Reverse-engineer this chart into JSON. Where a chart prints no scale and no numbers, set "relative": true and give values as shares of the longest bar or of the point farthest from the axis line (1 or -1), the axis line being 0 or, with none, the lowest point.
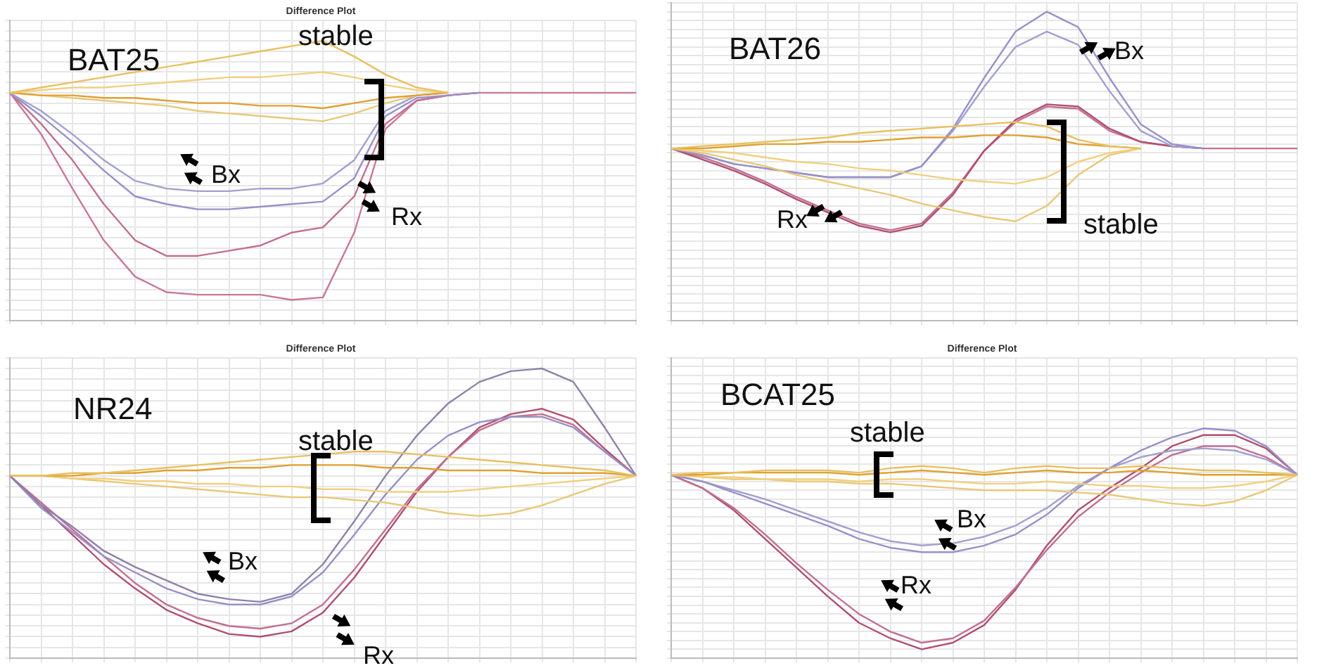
{
  "chart_data": [
    {
      "type": "line",
      "title": "Difference Plot",
      "relative": true,
      "grid": true,
      "legend": false,
      "tick_labels": false,
      "annotations": [
        "BAT25",
        "stable",
        "Bx",
        "Rx"
      ],
      "categories": [
        null,
        null,
        null,
        null,
        null,
        null,
        null,
        null,
        null,
        null,
        null,
        null,
        null,
        null,
        null,
        null,
        null,
        null,
        null,
        null,
        null
      ],
      "series": [
        {
          "color": "#e8c060",
          "values": [
            0.8,
            0.82,
            0.84,
            0.86,
            0.88,
            0.9,
            0.92,
            0.94,
            0.96,
            0.98,
            1.0,
            0.94,
            0.87,
            0.82,
            0.8,
            null,
            null,
            null,
            null,
            null,
            null
          ]
        },
        {
          "color": "#f0d080",
          "values": [
            0.8,
            0.81,
            0.82,
            0.82,
            0.83,
            0.84,
            0.85,
            0.86,
            0.86,
            0.87,
            0.88,
            0.86,
            0.83,
            0.81,
            0.8,
            null,
            null,
            null,
            null,
            null,
            null
          ]
        },
        {
          "color": "#e0a030",
          "values": [
            0.8,
            0.79,
            0.79,
            0.78,
            0.78,
            0.77,
            0.76,
            0.76,
            0.75,
            0.75,
            0.74,
            0.76,
            0.78,
            0.79,
            0.8,
            null,
            null,
            null,
            null,
            null,
            null
          ]
        },
        {
          "color": "#e8c878",
          "values": [
            0.8,
            0.79,
            0.78,
            0.77,
            0.76,
            0.75,
            0.73,
            0.72,
            0.71,
            0.7,
            0.69,
            0.72,
            0.76,
            0.79,
            0.8,
            null,
            null,
            null,
            null,
            null,
            null
          ]
        },
        {
          "color": "#a0a0d0",
          "values": [
            0.8,
            0.73,
            0.64,
            0.54,
            0.46,
            0.43,
            0.42,
            0.42,
            0.43,
            0.43,
            0.45,
            0.54,
            0.73,
            0.79,
            0.8,
            null,
            null,
            null,
            null,
            null,
            null
          ]
        },
        {
          "color": "#9890c8",
          "values": [
            0.8,
            0.71,
            0.61,
            0.5,
            0.4,
            0.37,
            0.35,
            0.35,
            0.36,
            0.37,
            0.38,
            0.47,
            0.71,
            0.78,
            0.79,
            0.8,
            null,
            null,
            null,
            null,
            null
          ]
        },
        {
          "color": "#c07090",
          "values": [
            0.8,
            0.68,
            0.54,
            0.37,
            0.23,
            0.17,
            0.17,
            0.19,
            0.21,
            0.26,
            0.28,
            0.4,
            0.68,
            0.77,
            0.79,
            0.8,
            null,
            null,
            null,
            null,
            null
          ]
        },
        {
          "color": "#c87898",
          "values": [
            0.8,
            0.64,
            0.43,
            0.23,
            0.09,
            0.03,
            0.02,
            0.02,
            0.02,
            0,
            0.01,
            0.26,
            0.66,
            0.77,
            0.79,
            0.8,
            0.8,
            0.8,
            0.8,
            0.8,
            0.8
          ]
        }
      ]
    },
    {
      "type": "line",
      "relative": true,
      "grid": true,
      "legend": false,
      "tick_labels": false,
      "annotations": [
        "BAT26",
        "Bx",
        "Rx",
        "stable"
      ],
      "categories": [
        null,
        null,
        null,
        null,
        null,
        null,
        null,
        null,
        null,
        null,
        null,
        null,
        null,
        null,
        null,
        null,
        null,
        null,
        null,
        null,
        null
      ],
      "series": [
        {
          "color": "#e8c060",
          "values": [
            0.38,
            0.39,
            0.4,
            0.41,
            0.42,
            0.43,
            0.45,
            0.46,
            0.47,
            0.48,
            0.49,
            0.5,
            0.48,
            0.42,
            0.39,
            0.38,
            null,
            null,
            null,
            null,
            null
          ]
        },
        {
          "color": "#e0a030",
          "values": [
            0.38,
            0.38,
            0.39,
            0.4,
            0.4,
            0.41,
            0.41,
            0.42,
            0.43,
            0.43,
            0.44,
            0.44,
            0.43,
            0.4,
            0.39,
            0.38,
            null,
            null,
            null,
            null,
            null
          ]
        },
        {
          "color": "#f0d080",
          "values": [
            0.38,
            0.37,
            0.36,
            0.34,
            0.32,
            0.31,
            0.29,
            0.28,
            0.26,
            0.24,
            0.23,
            0.22,
            0.25,
            0.32,
            0.36,
            0.38,
            null,
            null,
            null,
            null,
            null
          ]
        },
        {
          "color": "#e8c878",
          "values": [
            0.38,
            0.36,
            0.33,
            0.3,
            0.26,
            0.23,
            0.2,
            0.17,
            0.13,
            0.1,
            0.07,
            0.05,
            0.12,
            0.26,
            0.35,
            0.38,
            null,
            null,
            null,
            null,
            null
          ]
        },
        {
          "color": "#9890c8",
          "values": [
            0.38,
            0.35,
            0.31,
            0.29,
            0.27,
            0.25,
            0.25,
            0.25,
            0.3,
            0.47,
            0.7,
            0.91,
            1.0,
            0.93,
            0.7,
            0.49,
            0.4,
            0.38,
            null,
            null,
            null
          ]
        },
        {
          "color": "#a0a0d0",
          "values": [
            0.38,
            0.35,
            0.31,
            0.29,
            0.27,
            0.25,
            0.25,
            0.25,
            0.3,
            0.46,
            0.66,
            0.84,
            0.91,
            0.85,
            0.64,
            0.46,
            0.39,
            0.38,
            null,
            null,
            null
          ]
        },
        {
          "color": "#b05070",
          "values": [
            0.38,
            0.33,
            0.28,
            0.22,
            0.15,
            0.09,
            0.03,
            0,
            0.03,
            0.17,
            0.37,
            0.51,
            0.58,
            0.57,
            0.47,
            0.41,
            0.39,
            0.38,
            null,
            null,
            null
          ]
        },
        {
          "color": "#c07090",
          "values": [
            0.38,
            0.34,
            0.29,
            0.23,
            0.16,
            0.1,
            0.04,
            0.01,
            0.04,
            0.18,
            0.37,
            0.5,
            0.57,
            0.56,
            0.46,
            0.41,
            0.39,
            0.38,
            0.38,
            0.38,
            0.38
          ]
        }
      ]
    },
    {
      "type": "line",
      "title": "Difference Plot",
      "relative": true,
      "grid": true,
      "legend": false,
      "tick_labels": false,
      "annotations": [
        "NR24",
        "stable",
        "Bx",
        "Rx"
      ],
      "categories": [
        null,
        null,
        null,
        null,
        null,
        null,
        null,
        null,
        null,
        null,
        null,
        null,
        null,
        null,
        null,
        null,
        null,
        null,
        null,
        null,
        null
      ],
      "series": [
        {
          "color": "#e8c060",
          "values": [
            0.6,
            0.6,
            0.61,
            0.61,
            0.62,
            0.63,
            0.64,
            0.65,
            0.66,
            0.67,
            0.68,
            0.69,
            0.69,
            0.68,
            0.67,
            0.66,
            0.65,
            0.64,
            0.63,
            0.62,
            0.6
          ]
        },
        {
          "color": "#e0a030",
          "values": [
            0.6,
            0.6,
            0.6,
            0.61,
            0.61,
            0.62,
            0.62,
            0.63,
            0.63,
            0.64,
            0.64,
            0.64,
            0.63,
            0.63,
            0.62,
            0.62,
            0.62,
            0.61,
            0.61,
            0.61,
            0.6
          ]
        },
        {
          "color": "#f0d080",
          "values": [
            0.6,
            0.6,
            0.59,
            0.59,
            0.58,
            0.58,
            0.57,
            0.57,
            0.56,
            0.56,
            0.55,
            0.55,
            0.54,
            0.54,
            0.54,
            0.55,
            0.56,
            0.57,
            0.58,
            0.59,
            0.6
          ]
        },
        {
          "color": "#e8c878",
          "values": [
            0.6,
            0.6,
            0.59,
            0.58,
            0.57,
            0.56,
            0.55,
            0.54,
            0.53,
            0.52,
            0.52,
            0.51,
            0.5,
            0.48,
            0.46,
            0.45,
            0.46,
            0.49,
            0.53,
            0.57,
            0.6
          ]
        },
        {
          "color": "#9080a8",
          "values": [
            0.6,
            0.49,
            0.41,
            0.32,
            0.26,
            0.21,
            0.16,
            0.14,
            0.13,
            0.16,
            0.27,
            0.43,
            0.6,
            0.75,
            0.87,
            0.95,
            0.99,
            1.0,
            0.95,
            0.78,
            0.6
          ]
        },
        {
          "color": "#9890c8",
          "values": [
            0.6,
            0.48,
            0.39,
            0.3,
            0.24,
            0.18,
            0.14,
            0.12,
            0.12,
            0.15,
            0.24,
            0.38,
            0.53,
            0.66,
            0.75,
            0.8,
            0.82,
            0.82,
            0.78,
            0.69,
            0.6
          ]
        },
        {
          "color": "#c07090",
          "values": [
            0.6,
            0.5,
            0.4,
            0.3,
            0.2,
            0.12,
            0.07,
            0.04,
            0.03,
            0.05,
            0.12,
            0.25,
            0.4,
            0.55,
            0.67,
            0.77,
            0.82,
            0.83,
            0.79,
            0.69,
            0.6
          ]
        },
        {
          "color": "#b05070",
          "values": [
            0.6,
            0.49,
            0.38,
            0.27,
            0.18,
            0.1,
            0.05,
            0.01,
            0,
            0.02,
            0.09,
            0.22,
            0.38,
            0.54,
            0.67,
            0.78,
            0.83,
            0.85,
            0.81,
            0.7,
            0.6
          ]
        }
      ]
    },
    {
      "type": "line",
      "title": "Difference Plot",
      "relative": true,
      "grid": true,
      "legend": false,
      "tick_labels": false,
      "annotations": [
        "BCAT25",
        "stable",
        "Bx",
        "Rx"
      ],
      "categories": [
        null,
        null,
        null,
        null,
        null,
        null,
        null,
        null,
        null,
        null,
        null,
        null,
        null,
        null,
        null,
        null,
        null,
        null,
        null,
        null,
        null
      ],
      "series": [
        {
          "color": "#e8c060",
          "values": [
            0.79,
            0.8,
            0.8,
            0.81,
            0.81,
            0.81,
            0.8,
            0.82,
            0.83,
            0.82,
            0.8,
            0.82,
            0.83,
            0.82,
            0.82,
            0.83,
            0.82,
            0.81,
            0.81,
            0.8,
            0.79
          ]
        },
        {
          "color": "#e0a030",
          "values": [
            0.79,
            0.79,
            0.8,
            0.8,
            0.8,
            0.8,
            0.79,
            0.8,
            0.81,
            0.8,
            0.79,
            0.8,
            0.81,
            0.8,
            0.8,
            0.81,
            0.8,
            0.79,
            0.79,
            0.79,
            0.79
          ]
        },
        {
          "color": "#f0d080",
          "values": [
            0.79,
            0.78,
            0.78,
            0.77,
            0.77,
            0.77,
            0.76,
            0.77,
            0.77,
            0.76,
            0.75,
            0.75,
            0.76,
            0.75,
            0.74,
            0.74,
            0.73,
            0.73,
            0.74,
            0.76,
            0.79
          ]
        },
        {
          "color": "#e8c878",
          "values": [
            0.79,
            0.78,
            0.77,
            0.77,
            0.76,
            0.76,
            0.75,
            0.75,
            0.74,
            0.73,
            0.72,
            0.72,
            0.72,
            0.71,
            0.7,
            0.68,
            0.66,
            0.65,
            0.67,
            0.72,
            0.79
          ]
        },
        {
          "color": "#9890c8",
          "values": [
            0.79,
            0.76,
            0.71,
            0.66,
            0.61,
            0.56,
            0.5,
            0.46,
            0.44,
            0.44,
            0.47,
            0.52,
            0.61,
            0.73,
            0.82,
            0.9,
            0.96,
            1.0,
            0.99,
            0.92,
            0.79
          ]
        },
        {
          "color": "#a0a0d0",
          "values": [
            0.79,
            0.76,
            0.72,
            0.68,
            0.63,
            0.58,
            0.53,
            0.49,
            0.47,
            0.48,
            0.51,
            0.56,
            0.64,
            0.74,
            0.82,
            0.87,
            0.9,
            0.91,
            0.9,
            0.86,
            0.79
          ]
        },
        {
          "color": "#c07090",
          "values": [
            0.79,
            0.73,
            0.64,
            0.52,
            0.39,
            0.27,
            0.16,
            0.08,
            0.03,
            0.05,
            0.13,
            0.28,
            0.45,
            0.6,
            0.71,
            0.8,
            0.88,
            0.92,
            0.92,
            0.87,
            0.79
          ]
        },
        {
          "color": "#b05070",
          "values": [
            0.79,
            0.73,
            0.63,
            0.5,
            0.37,
            0.24,
            0.12,
            0.05,
            0,
            0.03,
            0.11,
            0.27,
            0.47,
            0.63,
            0.73,
            0.82,
            0.92,
            0.97,
            0.97,
            0.91,
            0.79
          ]
        }
      ]
    }
  ]
}
